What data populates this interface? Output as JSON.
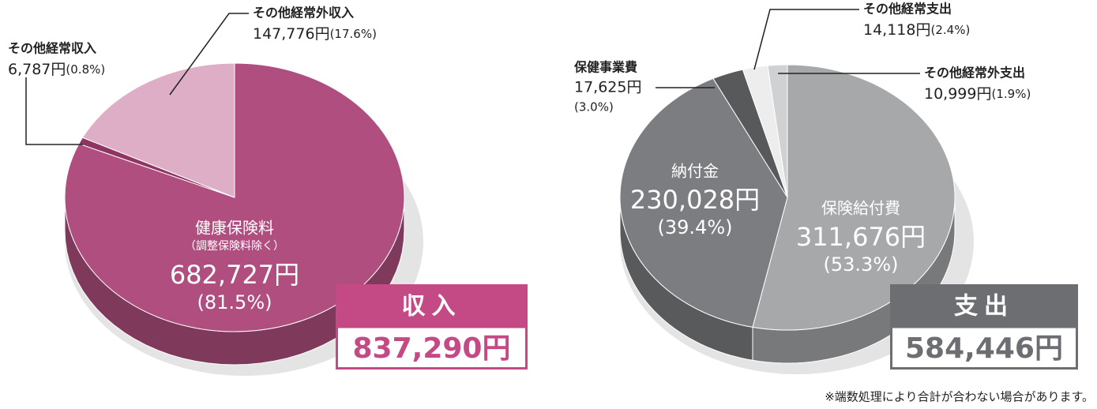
{
  "chart_data": [
    {
      "type": "pie",
      "categories": [
        "健康保険料",
        "その他経常収入",
        "その他経常外収入"
      ],
      "category_note": "（調整保険料除く）",
      "values": [
        682727,
        6787,
        147776
      ],
      "value_labels": [
        "682,727円",
        "6,787円",
        "147,776円"
      ],
      "percent_labels": [
        "(81.5%)",
        "(0.8%)",
        "(17.6%)"
      ],
      "colors": [
        "#b04f7f",
        "#8f3563",
        "#ddaec6"
      ],
      "total_title": "収入",
      "total_label": "837,290円",
      "total_color": "#c44a86"
    },
    {
      "type": "pie",
      "categories": [
        "保険給付費",
        "納付金",
        "保健事業費",
        "その他経常支出",
        "その他経常外支出"
      ],
      "values": [
        311676,
        230028,
        17625,
        14118,
        10999
      ],
      "value_labels": [
        "311,676円",
        "230,028円",
        "17,625円",
        "14,118円",
        "10,999円"
      ],
      "percent_labels": [
        "(53.3%)",
        "(39.4%)",
        "(3.0%)",
        "(2.4%)",
        "(1.9%)"
      ],
      "colors": [
        "#a7a8aa",
        "#7c7d80",
        "#58595b",
        "#ededee",
        "#d0d1d3"
      ],
      "total_title": "支出",
      "total_label": "584,446円",
      "total_color": "#6d6e71"
    }
  ],
  "footnote": "※端数処理により合計が合わない場合があります。"
}
